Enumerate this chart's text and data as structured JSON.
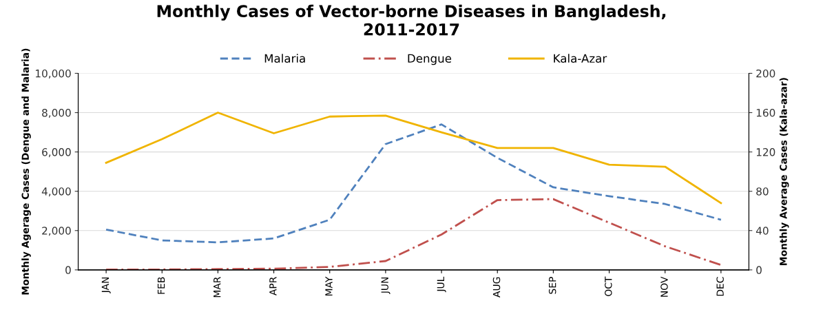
{
  "chart_data": {
    "type": "line",
    "title": "Monthly Cases of Vector-borne Diseases in Bangladesh,\n2011-2017",
    "ylabel": "Monthly Agerage Cases (Dengue and Malaria)",
    "y2label": "Monthly Average Cases (Kala-azar)",
    "categories": [
      "JAN",
      "FEB",
      "MAR",
      "APR",
      "MAY",
      "JUN",
      "JUL",
      "AUG",
      "SEP",
      "OCT",
      "NOV",
      "DEC"
    ],
    "series": [
      {
        "name": "Malaria",
        "color": "#4f81bd",
        "line_style": "dashed",
        "values": [
          2050,
          1500,
          1400,
          1600,
          2550,
          6400,
          7400,
          5700,
          4200,
          3750,
          3350,
          2550
        ]
      },
      {
        "name": "Dengue",
        "color": "#c0504d",
        "line_style": "dashdot",
        "values": [
          20,
          20,
          40,
          60,
          150,
          450,
          1800,
          3550,
          3600,
          2400,
          1200,
          250
        ]
      },
      {
        "name": "Kala-Azar",
        "color": "#f0b400",
        "line_style": "solid",
        "axis": "y2",
        "values": [
          109,
          133,
          160,
          139,
          156,
          157,
          140,
          124,
          124,
          107,
          105,
          68
        ]
      }
    ],
    "ylim": [
      0,
      10000
    ],
    "yticks": [
      {
        "value": 0,
        "label": "0"
      },
      {
        "value": 2000,
        "label": "2,000"
      },
      {
        "value": 4000,
        "label": "4,000"
      },
      {
        "value": 6000,
        "label": "6,000"
      },
      {
        "value": 8000,
        "label": "8,000"
      },
      {
        "value": 10000,
        "label": "10,000"
      }
    ],
    "y2lim": [
      0,
      200
    ],
    "y2ticks": [
      0,
      40,
      80,
      120,
      160,
      200
    ],
    "grid": "y",
    "legend": "top",
    "marker": "none"
  }
}
